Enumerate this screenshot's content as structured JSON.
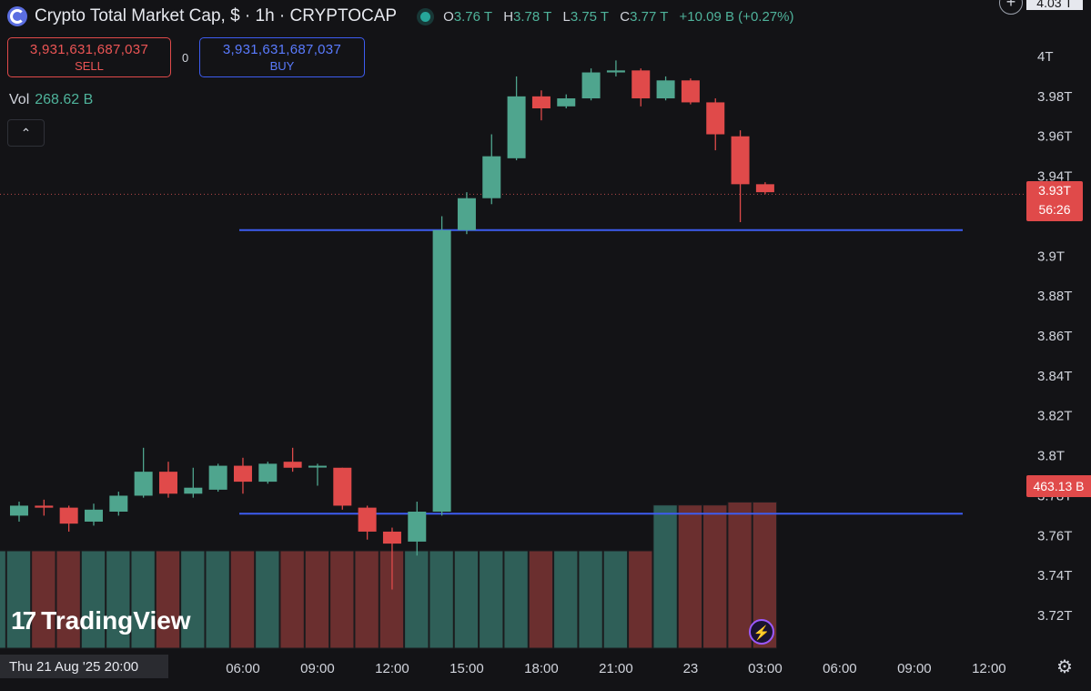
{
  "header": {
    "title": "Crypto Total Market Cap, $ · 1h · CRYPTOCAP",
    "open_label": "O",
    "open": "3.76 T",
    "high_label": "H",
    "high": "3.78 T",
    "low_label": "L",
    "low": "3.75 T",
    "close_label": "C",
    "close": "3.77 T",
    "change": "+10.09 B (+0.27%)"
  },
  "trade": {
    "sell_price": "3,931,631,687,037",
    "sell_label": "SELL",
    "spread": "0",
    "buy_price": "3,931,631,687,037",
    "buy_label": "BUY"
  },
  "volume": {
    "label": "Vol",
    "value": "268.62 B"
  },
  "axis_labels": {
    "price_current": "3.93T",
    "countdown": "56:26",
    "volume_current": "463.13 B",
    "top_partial": "4.03 T"
  },
  "branding": {
    "logo_text": "TradingView"
  },
  "time_axis": {
    "current_date_label": "Thu 21 Aug '25   20:00"
  },
  "colors": {
    "up": "#4fa58e",
    "down": "#e04a4a",
    "hline": "#3d5cf0",
    "background": "#131316"
  },
  "icons": [
    "crypto-logo-icon",
    "status-dot-icon",
    "chevron-up-icon",
    "tradingview-logo-icon",
    "lightning-icon",
    "settings-gear-icon",
    "plus-circle-icon"
  ],
  "chart_data": {
    "type": "candlestick",
    "title": "Crypto Total Market Cap, $ · 1h · CRYPTOCAP",
    "price_unit": "T",
    "volume_unit": "B",
    "ylim": [
      3.71,
      4.02
    ],
    "y_ticks": [
      "4T",
      "3.98T",
      "3.96T",
      "3.94T",
      "3.92T",
      "3.9T",
      "3.88T",
      "3.86T",
      "3.84T",
      "3.82T",
      "3.8T",
      "3.78T",
      "3.76T",
      "3.74T",
      "3.72T"
    ],
    "y_tick_values": [
      4.0,
      3.98,
      3.96,
      3.94,
      3.92,
      3.9,
      3.88,
      3.86,
      3.84,
      3.82,
      3.8,
      3.78,
      3.76,
      3.74,
      3.72
    ],
    "x_ticks": [
      "20:00",
      "06:00",
      "09:00",
      "12:00",
      "15:00",
      "18:00",
      "21:00",
      "23",
      "03:00",
      "06:00",
      "09:00",
      "12:00"
    ],
    "x_tick_hours": [
      -1,
      9,
      12,
      15,
      18,
      21,
      24,
      27,
      30,
      33,
      36,
      39
    ],
    "candles": [
      {
        "h": 0,
        "o": 3.77,
        "c": 3.775,
        "hi": 3.777,
        "lo": 3.767
      },
      {
        "h": 1,
        "o": 3.775,
        "c": 3.774,
        "hi": 3.778,
        "lo": 3.77
      },
      {
        "h": 2,
        "o": 3.774,
        "c": 3.766,
        "hi": 3.775,
        "lo": 3.762
      },
      {
        "h": 3,
        "o": 3.767,
        "c": 3.773,
        "hi": 3.776,
        "lo": 3.765
      },
      {
        "h": 4,
        "o": 3.772,
        "c": 3.78,
        "hi": 3.782,
        "lo": 3.77
      },
      {
        "h": 5,
        "o": 3.78,
        "c": 3.792,
        "hi": 3.804,
        "lo": 3.779
      },
      {
        "h": 6,
        "o": 3.792,
        "c": 3.781,
        "hi": 3.797,
        "lo": 3.779
      },
      {
        "h": 7,
        "o": 3.781,
        "c": 3.784,
        "hi": 3.794,
        "lo": 3.779
      },
      {
        "h": 8,
        "o": 3.783,
        "c": 3.795,
        "hi": 3.796,
        "lo": 3.782
      },
      {
        "h": 9,
        "o": 3.795,
        "c": 3.787,
        "hi": 3.799,
        "lo": 3.781
      },
      {
        "h": 10,
        "o": 3.787,
        "c": 3.796,
        "hi": 3.797,
        "lo": 3.786
      },
      {
        "h": 11,
        "o": 3.797,
        "c": 3.794,
        "hi": 3.804,
        "lo": 3.792
      },
      {
        "h": 12,
        "o": 3.795,
        "c": 3.795,
        "hi": 3.796,
        "lo": 3.785
      },
      {
        "h": 13,
        "o": 3.794,
        "c": 3.775,
        "hi": 3.794,
        "lo": 3.773
      },
      {
        "h": 14,
        "o": 3.774,
        "c": 3.762,
        "hi": 3.775,
        "lo": 3.758
      },
      {
        "h": 15,
        "o": 3.762,
        "c": 3.756,
        "hi": 3.764,
        "lo": 3.733
      },
      {
        "h": 16,
        "o": 3.757,
        "c": 3.772,
        "hi": 3.777,
        "lo": 3.75
      },
      {
        "h": 17,
        "o": 3.772,
        "c": 3.913,
        "hi": 3.92,
        "lo": 3.77
      },
      {
        "h": 18,
        "o": 3.913,
        "c": 3.929,
        "hi": 3.932,
        "lo": 3.911
      },
      {
        "h": 19,
        "o": 3.929,
        "c": 3.95,
        "hi": 3.961,
        "lo": 3.926
      },
      {
        "h": 20,
        "o": 3.949,
        "c": 3.98,
        "hi": 3.99,
        "lo": 3.948
      },
      {
        "h": 21,
        "o": 3.98,
        "c": 3.974,
        "hi": 3.983,
        "lo": 3.968
      },
      {
        "h": 22,
        "o": 3.975,
        "c": 3.979,
        "hi": 3.981,
        "lo": 3.974
      },
      {
        "h": 23,
        "o": 3.979,
        "c": 3.992,
        "hi": 3.994,
        "lo": 3.978
      },
      {
        "h": 24,
        "o": 3.992,
        "c": 3.993,
        "hi": 3.998,
        "lo": 3.99
      },
      {
        "h": 25,
        "o": 3.993,
        "c": 3.979,
        "hi": 3.994,
        "lo": 3.975
      },
      {
        "h": 26,
        "o": 3.979,
        "c": 3.988,
        "hi": 3.99,
        "lo": 3.978
      },
      {
        "h": 27,
        "o": 3.988,
        "c": 3.977,
        "hi": 3.989,
        "lo": 3.976
      },
      {
        "h": 28,
        "o": 3.977,
        "c": 3.961,
        "hi": 3.979,
        "lo": 3.953
      },
      {
        "h": 29,
        "o": 3.96,
        "c": 3.936,
        "hi": 3.963,
        "lo": 3.917
      },
      {
        "h": 30,
        "o": 3.936,
        "c": 3.932,
        "hi": 3.937,
        "lo": 3.931
      }
    ],
    "volume_levels": [
      {
        "h": -1,
        "dir": "up",
        "level": 1
      },
      {
        "h": 0,
        "dir": "up",
        "level": 1
      },
      {
        "h": 1,
        "dir": "down",
        "level": 1
      },
      {
        "h": 2,
        "dir": "down",
        "level": 1
      },
      {
        "h": 3,
        "dir": "up",
        "level": 1
      },
      {
        "h": 4,
        "dir": "up",
        "level": 1
      },
      {
        "h": 5,
        "dir": "up",
        "level": 1
      },
      {
        "h": 6,
        "dir": "down",
        "level": 1
      },
      {
        "h": 7,
        "dir": "up",
        "level": 1
      },
      {
        "h": 8,
        "dir": "up",
        "level": 1
      },
      {
        "h": 9,
        "dir": "down",
        "level": 1
      },
      {
        "h": 10,
        "dir": "up",
        "level": 1
      },
      {
        "h": 11,
        "dir": "down",
        "level": 1
      },
      {
        "h": 12,
        "dir": "down",
        "level": 1
      },
      {
        "h": 13,
        "dir": "down",
        "level": 1
      },
      {
        "h": 14,
        "dir": "down",
        "level": 1
      },
      {
        "h": 15,
        "dir": "down",
        "level": 1
      },
      {
        "h": 16,
        "dir": "up",
        "level": 1
      },
      {
        "h": 17,
        "dir": "up",
        "level": 1
      },
      {
        "h": 18,
        "dir": "up",
        "level": 1
      },
      {
        "h": 19,
        "dir": "up",
        "level": 1
      },
      {
        "h": 20,
        "dir": "up",
        "level": 1
      },
      {
        "h": 21,
        "dir": "down",
        "level": 1
      },
      {
        "h": 22,
        "dir": "up",
        "level": 1
      },
      {
        "h": 23,
        "dir": "up",
        "level": 1
      },
      {
        "h": 24,
        "dir": "up",
        "level": 1
      },
      {
        "h": 25,
        "dir": "down",
        "level": 1
      },
      {
        "h": 26,
        "dir": "up",
        "level": 1.47
      },
      {
        "h": 27,
        "dir": "down",
        "level": 1.47
      },
      {
        "h": 28,
        "dir": "down",
        "level": 1.47
      },
      {
        "h": 29,
        "dir": "down",
        "level": 1.5
      },
      {
        "h": 30,
        "dir": "down",
        "level": 1.5
      }
    ],
    "horizontal_lines": [
      3.913,
      3.771
    ],
    "current_price": 3.931,
    "grid": false
  }
}
